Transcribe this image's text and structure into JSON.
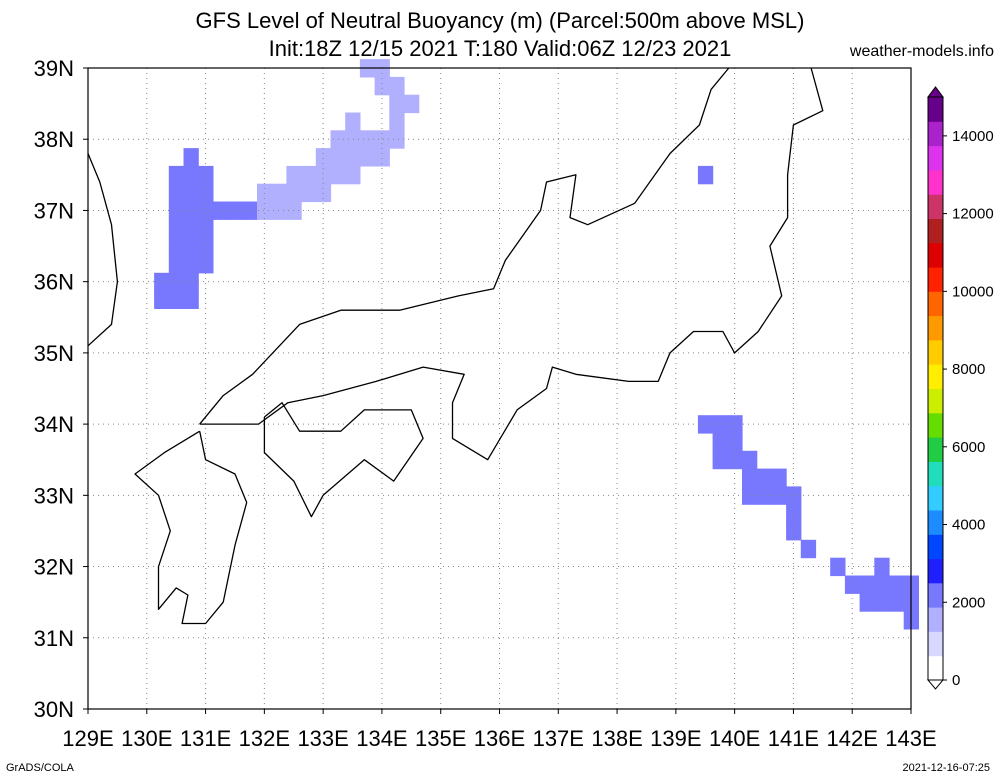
{
  "title": {
    "line1": "GFS Level of Neutral Buoyancy (m) (Parcel:500m above MSL)",
    "line2": "Init:18Z 12/15 2021 T:180 Valid:06Z 12/23 2021"
  },
  "site_label": "weather-models.info",
  "footer": {
    "left": "GrADS/COLA",
    "right": "2021-12-16-07:25"
  },
  "map": {
    "lon_range": [
      129,
      143
    ],
    "lat_range": [
      30,
      39
    ],
    "lon_ticks": [
      "129E",
      "130E",
      "131E",
      "132E",
      "133E",
      "134E",
      "135E",
      "136E",
      "137E",
      "138E",
      "139E",
      "140E",
      "141E",
      "142E",
      "143E"
    ],
    "lat_ticks": [
      "30N",
      "31N",
      "32N",
      "33N",
      "34N",
      "35N",
      "36N",
      "37N",
      "38N",
      "39N"
    ],
    "grid": true
  },
  "colorbar": {
    "range": [
      0,
      15000
    ],
    "tick_labels": [
      "0",
      "2000",
      "4000",
      "6000",
      "8000",
      "10000",
      "12000",
      "14000"
    ],
    "colors": [
      "#ffffff",
      "#d8d8ff",
      "#b0b0ff",
      "#7878ff",
      "#2020ff",
      "#0046ff",
      "#1d8cff",
      "#33ccff",
      "#22ddbb",
      "#22cc44",
      "#66dd00",
      "#ccee00",
      "#ffee00",
      "#ffcc00",
      "#ff9900",
      "#ff6600",
      "#ff2200",
      "#dd0000",
      "#b02020",
      "#cc3366",
      "#ff33cc",
      "#dd33ee",
      "#aa22cc",
      "#660088"
    ]
  },
  "chart_data": {
    "type": "heatmap",
    "title": "GFS Level of Neutral Buoyancy (m) (Parcel:500m above MSL)",
    "subtitle": "Init:18Z 12/15 2021 T:180 Valid:06Z 12/23 2021",
    "xlim": [
      129,
      143
    ],
    "ylim": [
      30,
      39
    ],
    "zlim": [
      0,
      15000
    ],
    "cells": [
      {
        "lon": 130.75,
        "lat": 37.75,
        "value": 2300
      },
      {
        "lon": 130.5,
        "lat": 37.5,
        "value": 2300
      },
      {
        "lon": 130.75,
        "lat": 37.5,
        "value": 2300
      },
      {
        "lon": 131.0,
        "lat": 37.5,
        "value": 2300
      },
      {
        "lon": 130.5,
        "lat": 37.25,
        "value": 2300
      },
      {
        "lon": 130.75,
        "lat": 37.25,
        "value": 2300
      },
      {
        "lon": 131.0,
        "lat": 37.25,
        "value": 2300
      },
      {
        "lon": 130.5,
        "lat": 37.0,
        "value": 2300
      },
      {
        "lon": 130.75,
        "lat": 37.0,
        "value": 2300
      },
      {
        "lon": 131.0,
        "lat": 37.0,
        "value": 2300
      },
      {
        "lon": 130.5,
        "lat": 36.75,
        "value": 2300
      },
      {
        "lon": 130.75,
        "lat": 36.75,
        "value": 2300
      },
      {
        "lon": 131.0,
        "lat": 36.75,
        "value": 2300
      },
      {
        "lon": 130.5,
        "lat": 36.5,
        "value": 2300
      },
      {
        "lon": 130.75,
        "lat": 36.5,
        "value": 2300
      },
      {
        "lon": 131.0,
        "lat": 36.5,
        "value": 2300
      },
      {
        "lon": 130.5,
        "lat": 36.25,
        "value": 2300
      },
      {
        "lon": 130.75,
        "lat": 36.25,
        "value": 2300
      },
      {
        "lon": 131.0,
        "lat": 36.25,
        "value": 2300
      },
      {
        "lon": 130.25,
        "lat": 36.0,
        "value": 2300
      },
      {
        "lon": 130.5,
        "lat": 36.0,
        "value": 2300
      },
      {
        "lon": 130.75,
        "lat": 36.0,
        "value": 2300
      },
      {
        "lon": 130.25,
        "lat": 35.75,
        "value": 2300
      },
      {
        "lon": 130.5,
        "lat": 35.75,
        "value": 2300
      },
      {
        "lon": 130.75,
        "lat": 35.75,
        "value": 2300
      },
      {
        "lon": 131.25,
        "lat": 37.0,
        "value": 2100
      },
      {
        "lon": 131.5,
        "lat": 37.0,
        "value": 2100
      },
      {
        "lon": 131.75,
        "lat": 37.0,
        "value": 2100
      },
      {
        "lon": 132.0,
        "lat": 37.25,
        "value": 1800
      },
      {
        "lon": 132.0,
        "lat": 37.0,
        "value": 1800
      },
      {
        "lon": 132.25,
        "lat": 37.25,
        "value": 1800
      },
      {
        "lon": 132.25,
        "lat": 37.0,
        "value": 1800
      },
      {
        "lon": 132.5,
        "lat": 37.5,
        "value": 1800
      },
      {
        "lon": 132.5,
        "lat": 37.25,
        "value": 1800
      },
      {
        "lon": 132.5,
        "lat": 37.0,
        "value": 1800
      },
      {
        "lon": 132.75,
        "lat": 37.5,
        "value": 1800
      },
      {
        "lon": 132.75,
        "lat": 37.25,
        "value": 1800
      },
      {
        "lon": 133.0,
        "lat": 37.75,
        "value": 1800
      },
      {
        "lon": 133.0,
        "lat": 37.5,
        "value": 1800
      },
      {
        "lon": 133.0,
        "lat": 37.25,
        "value": 1800
      },
      {
        "lon": 133.25,
        "lat": 38.0,
        "value": 1800
      },
      {
        "lon": 133.25,
        "lat": 37.75,
        "value": 1800
      },
      {
        "lon": 133.25,
        "lat": 37.5,
        "value": 1800
      },
      {
        "lon": 133.5,
        "lat": 38.0,
        "value": 1800
      },
      {
        "lon": 133.5,
        "lat": 37.75,
        "value": 1800
      },
      {
        "lon": 133.5,
        "lat": 37.5,
        "value": 1800
      },
      {
        "lon": 133.5,
        "lat": 38.25,
        "value": 1800
      },
      {
        "lon": 133.75,
        "lat": 38.0,
        "value": 1800
      },
      {
        "lon": 133.75,
        "lat": 37.75,
        "value": 1800
      },
      {
        "lon": 134.0,
        "lat": 38.0,
        "value": 1800
      },
      {
        "lon": 134.0,
        "lat": 37.75,
        "value": 1800
      },
      {
        "lon": 134.25,
        "lat": 38.0,
        "value": 1800
      },
      {
        "lon": 134.25,
        "lat": 38.25,
        "value": 1800
      },
      {
        "lon": 134.25,
        "lat": 38.5,
        "value": 1800
      },
      {
        "lon": 134.5,
        "lat": 38.5,
        "value": 1800
      },
      {
        "lon": 134.0,
        "lat": 38.75,
        "value": 1800
      },
      {
        "lon": 134.25,
        "lat": 38.75,
        "value": 1800
      },
      {
        "lon": 133.75,
        "lat": 39.0,
        "value": 1800
      },
      {
        "lon": 134.0,
        "lat": 39.0,
        "value": 1800
      },
      {
        "lon": 139.5,
        "lat": 37.5,
        "value": 2000
      },
      {
        "lon": 139.5,
        "lat": 34.0,
        "value": 2300
      },
      {
        "lon": 139.75,
        "lat": 34.0,
        "value": 2300
      },
      {
        "lon": 140.0,
        "lat": 34.0,
        "value": 2300
      },
      {
        "lon": 139.75,
        "lat": 33.75,
        "value": 2300
      },
      {
        "lon": 140.0,
        "lat": 33.75,
        "value": 2300
      },
      {
        "lon": 139.75,
        "lat": 33.5,
        "value": 2300
      },
      {
        "lon": 140.0,
        "lat": 33.5,
        "value": 2300
      },
      {
        "lon": 140.25,
        "lat": 33.5,
        "value": 2300
      },
      {
        "lon": 140.25,
        "lat": 33.25,
        "value": 2300
      },
      {
        "lon": 140.5,
        "lat": 33.25,
        "value": 2300
      },
      {
        "lon": 140.75,
        "lat": 33.25,
        "value": 2300
      },
      {
        "lon": 140.25,
        "lat": 33.0,
        "value": 2300
      },
      {
        "lon": 140.5,
        "lat": 33.0,
        "value": 2300
      },
      {
        "lon": 140.75,
        "lat": 33.0,
        "value": 2300
      },
      {
        "lon": 141.0,
        "lat": 33.0,
        "value": 2300
      },
      {
        "lon": 141.0,
        "lat": 32.75,
        "value": 2300
      },
      {
        "lon": 141.0,
        "lat": 32.5,
        "value": 2300
      },
      {
        "lon": 141.25,
        "lat": 32.25,
        "value": 2300
      },
      {
        "lon": 141.75,
        "lat": 32.0,
        "value": 2300
      },
      {
        "lon": 142.0,
        "lat": 31.75,
        "value": 2300
      },
      {
        "lon": 142.25,
        "lat": 31.75,
        "value": 2300
      },
      {
        "lon": 142.5,
        "lat": 32.0,
        "value": 2100
      },
      {
        "lon": 142.5,
        "lat": 31.75,
        "value": 2100
      },
      {
        "lon": 142.75,
        "lat": 31.75,
        "value": 2100
      },
      {
        "lon": 142.25,
        "lat": 31.5,
        "value": 2100
      },
      {
        "lon": 142.5,
        "lat": 31.5,
        "value": 2100
      },
      {
        "lon": 142.75,
        "lat": 31.5,
        "value": 2100
      },
      {
        "lon": 143.0,
        "lat": 31.75,
        "value": 2100
      },
      {
        "lon": 143.0,
        "lat": 31.5,
        "value": 2100
      },
      {
        "lon": 143.0,
        "lat": 31.25,
        "value": 2100
      }
    ]
  },
  "coastlines": [
    [
      [
        129.0,
        37.8
      ],
      [
        129.2,
        37.4
      ],
      [
        129.4,
        36.8
      ],
      [
        129.5,
        36.0
      ],
      [
        129.4,
        35.4
      ],
      [
        129.0,
        35.1
      ]
    ],
    [
      [
        130.9,
        33.9
      ],
      [
        131.0,
        33.5
      ],
      [
        131.5,
        33.3
      ],
      [
        131.7,
        32.9
      ],
      [
        131.5,
        32.3
      ],
      [
        131.3,
        31.5
      ],
      [
        131.0,
        31.2
      ],
      [
        130.6,
        31.2
      ],
      [
        130.7,
        31.6
      ],
      [
        130.5,
        31.7
      ],
      [
        130.2,
        31.4
      ],
      [
        130.2,
        32.0
      ],
      [
        130.4,
        32.5
      ],
      [
        130.2,
        33.0
      ],
      [
        129.8,
        33.3
      ],
      [
        130.3,
        33.6
      ],
      [
        130.9,
        33.9
      ]
    ],
    [
      [
        132.0,
        34.1
      ],
      [
        132.3,
        34.3
      ],
      [
        132.6,
        33.9
      ],
      [
        133.3,
        33.9
      ],
      [
        133.7,
        34.2
      ],
      [
        134.5,
        34.2
      ],
      [
        134.7,
        33.8
      ],
      [
        134.2,
        33.2
      ],
      [
        133.7,
        33.5
      ],
      [
        133.0,
        33.0
      ],
      [
        132.8,
        32.7
      ],
      [
        132.5,
        33.2
      ],
      [
        132.0,
        33.6
      ],
      [
        132.0,
        34.1
      ]
    ],
    [
      [
        130.9,
        34.0
      ],
      [
        131.3,
        34.4
      ],
      [
        131.8,
        34.7
      ],
      [
        132.6,
        35.4
      ],
      [
        133.3,
        35.6
      ],
      [
        134.3,
        35.6
      ],
      [
        135.3,
        35.8
      ],
      [
        135.9,
        35.9
      ],
      [
        136.1,
        36.3
      ],
      [
        136.7,
        37.0
      ],
      [
        136.8,
        37.4
      ],
      [
        137.3,
        37.5
      ],
      [
        137.2,
        36.9
      ],
      [
        137.5,
        36.8
      ],
      [
        138.3,
        37.1
      ],
      [
        138.9,
        37.8
      ],
      [
        139.4,
        38.2
      ],
      [
        139.6,
        38.7
      ],
      [
        139.9,
        39.0
      ]
    ],
    [
      [
        141.3,
        39.0
      ],
      [
        141.5,
        38.4
      ],
      [
        141.0,
        38.2
      ],
      [
        140.9,
        37.5
      ],
      [
        140.9,
        36.9
      ],
      [
        140.6,
        36.5
      ],
      [
        140.8,
        35.8
      ],
      [
        140.4,
        35.3
      ],
      [
        140.0,
        35.0
      ],
      [
        139.8,
        35.3
      ],
      [
        139.3,
        35.3
      ],
      [
        138.9,
        35.0
      ],
      [
        138.7,
        34.6
      ],
      [
        138.2,
        34.6
      ],
      [
        137.3,
        34.7
      ],
      [
        136.9,
        34.8
      ],
      [
        136.8,
        34.5
      ],
      [
        136.3,
        34.2
      ],
      [
        135.8,
        33.5
      ],
      [
        135.2,
        33.8
      ],
      [
        135.2,
        34.3
      ],
      [
        135.4,
        34.7
      ],
      [
        134.7,
        34.8
      ],
      [
        133.9,
        34.6
      ],
      [
        133.0,
        34.4
      ],
      [
        132.4,
        34.3
      ],
      [
        131.9,
        34.0
      ],
      [
        131.3,
        34.0
      ],
      [
        130.9,
        34.0
      ]
    ]
  ]
}
